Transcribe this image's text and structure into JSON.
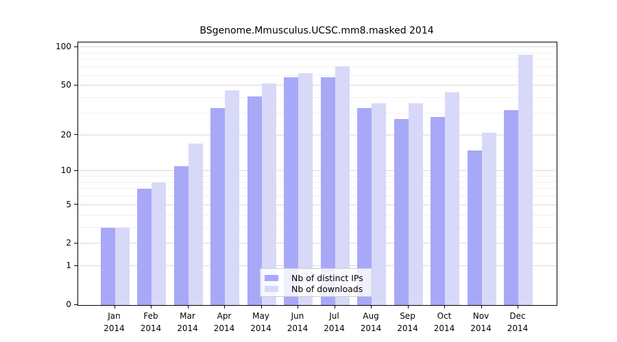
{
  "chart_data": {
    "type": "bar",
    "title": "BSgenome.Mmusculus.UCSC.mm8.masked 2014",
    "categories": [
      "Jan 2014",
      "Feb 2014",
      "Mar 2014",
      "Apr 2014",
      "May 2014",
      "Jun 2014",
      "Jul 2014",
      "Aug 2014",
      "Sep 2014",
      "Oct 2014",
      "Nov 2014",
      "Dec 2014"
    ],
    "series": [
      {
        "name": "Nb of distinct IPs",
        "color": "#a8a8f8",
        "values": [
          3,
          7,
          11,
          33,
          41,
          58,
          58,
          33,
          27,
          28,
          15,
          32
        ]
      },
      {
        "name": "Nb of downloads",
        "color": "#d8d8f8",
        "values": [
          3,
          8,
          17,
          46,
          52,
          63,
          71,
          36,
          36,
          44,
          21,
          88
        ]
      }
    ],
    "yscale": "log1p",
    "yticks": [
      0,
      1,
      2,
      5,
      10,
      20,
      50,
      100
    ],
    "minor_gridlines": [
      3,
      4,
      6,
      7,
      8,
      9,
      30,
      40,
      60,
      70,
      80,
      90
    ],
    "ylim": [
      0,
      110
    ],
    "grid": true,
    "legend_position": "inside-bottom-center",
    "xlabel": "",
    "ylabel": ""
  },
  "colors": {
    "major_grid": "#d9d9d9",
    "minor_grid": "#f0f0f0",
    "axis": "#000000"
  }
}
